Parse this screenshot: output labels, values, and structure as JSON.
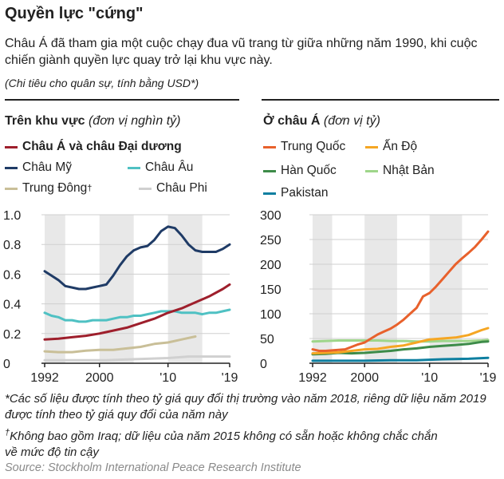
{
  "header": {
    "title": "Quyền lực \"cứng\"",
    "subtitle": "Châu Á đã tham gia một cuộc chạy đua vũ trang từ giữa những năm 1990, khi cuộc chiến giành quyền lực quay trở lại khu vực này.",
    "note": "(Chi tiêu cho quân sự, tính bằng USD*)"
  },
  "footer": {
    "footnote1": "*Các số liệu được tính theo tỷ giá quy đổi thị trường vào năm 2018, riêng dữ liệu năm 2019 được tính theo tỷ giá quy đổi của năm này",
    "footnote2_mark": "†",
    "footnote2": "Không bao gồm Iraq; dữ liệu của năm 2015 không có sẵn hoặc không chắc chắn về mức độ tin cậy",
    "source": "Source: Stockholm International Peace Research Institute"
  },
  "chart_data": [
    {
      "type": "line",
      "title": "Trên khu vực",
      "unit_note": "(đơn vị nghìn tỷ)",
      "ylim": [
        0,
        1.0
      ],
      "yticks": [
        "0",
        "0.2",
        "0.4",
        "0.6",
        "0.8",
        "1.0"
      ],
      "xlim": [
        1992,
        2019
      ],
      "xticks": [
        "1992",
        "2000",
        "'10",
        "'19"
      ],
      "shaded_bands": [
        [
          1992,
          1995
        ],
        [
          2000,
          2005
        ],
        [
          2010,
          2015
        ]
      ],
      "series": [
        {
          "name": "Châu Á và châu Đại dương",
          "bold": true,
          "color": "#9e1f2c",
          "x": [
            1992,
            1994,
            1996,
            1998,
            2000,
            2002,
            2004,
            2006,
            2008,
            2010,
            2012,
            2014,
            2016,
            2018,
            2019
          ],
          "y": [
            0.16,
            0.165,
            0.175,
            0.185,
            0.2,
            0.22,
            0.24,
            0.27,
            0.3,
            0.34,
            0.37,
            0.41,
            0.45,
            0.5,
            0.53
          ]
        },
        {
          "name": "Châu Mỹ",
          "color": "#1f3b66",
          "x": [
            1992,
            1993,
            1994,
            1995,
            1996,
            1997,
            1998,
            1999,
            2000,
            2001,
            2002,
            2003,
            2004,
            2005,
            2006,
            2007,
            2008,
            2009,
            2010,
            2011,
            2012,
            2013,
            2014,
            2015,
            2016,
            2017,
            2018,
            2019
          ],
          "y": [
            0.62,
            0.59,
            0.56,
            0.52,
            0.51,
            0.5,
            0.5,
            0.51,
            0.52,
            0.53,
            0.59,
            0.66,
            0.72,
            0.76,
            0.78,
            0.79,
            0.83,
            0.89,
            0.92,
            0.91,
            0.86,
            0.8,
            0.76,
            0.75,
            0.75,
            0.75,
            0.77,
            0.8
          ]
        },
        {
          "name": "Châu Âu",
          "color": "#4fc1c3",
          "x": [
            1992,
            1993,
            1994,
            1995,
            1996,
            1997,
            1998,
            1999,
            2000,
            2001,
            2002,
            2003,
            2004,
            2005,
            2006,
            2007,
            2008,
            2009,
            2010,
            2011,
            2012,
            2013,
            2014,
            2015,
            2016,
            2017,
            2018,
            2019
          ],
          "y": [
            0.34,
            0.32,
            0.31,
            0.29,
            0.29,
            0.28,
            0.28,
            0.29,
            0.29,
            0.29,
            0.3,
            0.31,
            0.31,
            0.32,
            0.32,
            0.33,
            0.34,
            0.35,
            0.35,
            0.35,
            0.34,
            0.34,
            0.34,
            0.33,
            0.34,
            0.34,
            0.35,
            0.36
          ]
        },
        {
          "name": "Trung Đông",
          "dagger": "†",
          "color": "#c9bf98",
          "x": [
            1992,
            1994,
            1996,
            1998,
            2000,
            2002,
            2004,
            2006,
            2008,
            2010,
            2012,
            2014
          ],
          "y": [
            0.08,
            0.075,
            0.075,
            0.085,
            0.09,
            0.09,
            0.1,
            0.11,
            0.13,
            0.14,
            0.16,
            0.18
          ]
        },
        {
          "name": "Châu Phi",
          "color": "#d0d0d0",
          "x": [
            1992,
            1995,
            1998,
            2001,
            2004,
            2007,
            2010,
            2013,
            2016,
            2019
          ],
          "y": [
            0.02,
            0.02,
            0.02,
            0.02,
            0.025,
            0.03,
            0.035,
            0.045,
            0.045,
            0.045
          ]
        }
      ]
    },
    {
      "type": "line",
      "title": "Ở châu Á",
      "unit_note": "(đơn vị tỷ)",
      "ylim": [
        0,
        300
      ],
      "yticks": [
        "0",
        "50",
        "100",
        "150",
        "200",
        "250",
        "300"
      ],
      "xlim": [
        1992,
        2019
      ],
      "xticks": [
        "1992",
        "2000",
        "'10",
        "'19"
      ],
      "shaded_bands": [
        [
          1992,
          1995
        ],
        [
          2000,
          2005
        ],
        [
          2010,
          2015
        ]
      ],
      "series": [
        {
          "name": "Trung Quốc",
          "color": "#e8612c",
          "x": [
            1992,
            1993,
            1994,
            1995,
            1996,
            1997,
            1998,
            1999,
            2000,
            2001,
            2002,
            2003,
            2004,
            2005,
            2006,
            2007,
            2008,
            2009,
            2010,
            2011,
            2012,
            2013,
            2014,
            2015,
            2016,
            2017,
            2018,
            2019
          ],
          "y": [
            28,
            25,
            25,
            26,
            27,
            28,
            33,
            38,
            42,
            50,
            58,
            64,
            70,
            78,
            88,
            100,
            112,
            135,
            142,
            155,
            170,
            185,
            200,
            212,
            223,
            235,
            250,
            266
          ]
        },
        {
          "name": "Ấn Độ",
          "color": "#f5a623",
          "x": [
            1992,
            1994,
            1996,
            1998,
            2000,
            2002,
            2004,
            2006,
            2008,
            2010,
            2012,
            2014,
            2016,
            2018,
            2019
          ],
          "y": [
            20,
            21,
            22,
            25,
            28,
            29,
            33,
            36,
            42,
            48,
            50,
            52,
            57,
            67,
            71
          ]
        },
        {
          "name": "Hàn Quốc",
          "color": "#3d8b49",
          "x": [
            1992,
            1994,
            1996,
            1998,
            2000,
            2002,
            2004,
            2006,
            2008,
            2010,
            2012,
            2014,
            2016,
            2018,
            2019
          ],
          "y": [
            18,
            19,
            21,
            20,
            21,
            23,
            25,
            28,
            30,
            33,
            35,
            37,
            39,
            43,
            44
          ]
        },
        {
          "name": "Nhật Bản",
          "color": "#9ed68a",
          "x": [
            1992,
            1994,
            1996,
            1998,
            2000,
            2002,
            2004,
            2006,
            2008,
            2010,
            2012,
            2014,
            2016,
            2018,
            2019
          ],
          "y": [
            44,
            45,
            46,
            46,
            46,
            46,
            45,
            45,
            44,
            44,
            45,
            45,
            45,
            46,
            47
          ]
        },
        {
          "name": "Pakistan",
          "color": "#0e7fa0",
          "x": [
            1992,
            1996,
            2000,
            2004,
            2008,
            2012,
            2016,
            2019
          ],
          "y": [
            5,
            5,
            5,
            6,
            6,
            8,
            9,
            11
          ]
        }
      ]
    }
  ]
}
